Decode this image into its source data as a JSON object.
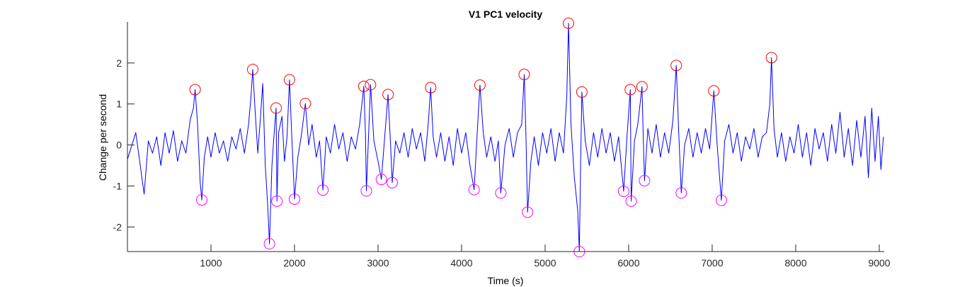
{
  "chart_data": {
    "type": "line",
    "title": "V1 PC1 velocity",
    "xlabel": "Time (s)",
    "ylabel": "Change per second",
    "xlim": [
      0,
      9060
    ],
    "ylim": [
      -2.6,
      3.0
    ],
    "xticks": [
      1000,
      2000,
      3000,
      4000,
      5000,
      6000,
      7000,
      8000,
      9000
    ],
    "yticks": [
      -2,
      -1,
      0,
      1,
      2
    ],
    "grid": false,
    "line_color": "#0000ff",
    "peak_marker_color": "#ff0000",
    "trough_marker_color": "#ff00ff",
    "peaks": [
      {
        "x": 810,
        "y": 1.35
      },
      {
        "x": 1500,
        "y": 1.84
      },
      {
        "x": 1780,
        "y": 0.9
      },
      {
        "x": 1940,
        "y": 1.59
      },
      {
        "x": 2130,
        "y": 1.01
      },
      {
        "x": 2830,
        "y": 1.43
      },
      {
        "x": 2910,
        "y": 1.47
      },
      {
        "x": 3120,
        "y": 1.23
      },
      {
        "x": 3630,
        "y": 1.4
      },
      {
        "x": 4220,
        "y": 1.46
      },
      {
        "x": 4750,
        "y": 1.72
      },
      {
        "x": 5280,
        "y": 2.97
      },
      {
        "x": 5440,
        "y": 1.29
      },
      {
        "x": 6020,
        "y": 1.35
      },
      {
        "x": 6160,
        "y": 1.42
      },
      {
        "x": 6570,
        "y": 1.94
      },
      {
        "x": 7020,
        "y": 1.32
      },
      {
        "x": 7710,
        "y": 2.13
      }
    ],
    "troughs": [
      {
        "x": 890,
        "y": -1.34
      },
      {
        "x": 1700,
        "y": -2.41
      },
      {
        "x": 1790,
        "y": -1.37
      },
      {
        "x": 2000,
        "y": -1.32
      },
      {
        "x": 2340,
        "y": -1.1
      },
      {
        "x": 2860,
        "y": -1.12
      },
      {
        "x": 3040,
        "y": -0.84
      },
      {
        "x": 3170,
        "y": -0.92
      },
      {
        "x": 4150,
        "y": -1.09
      },
      {
        "x": 4470,
        "y": -1.17
      },
      {
        "x": 4790,
        "y": -1.64
      },
      {
        "x": 5410,
        "y": -2.6
      },
      {
        "x": 5940,
        "y": -1.13
      },
      {
        "x": 6030,
        "y": -1.37
      },
      {
        "x": 6190,
        "y": -0.87
      },
      {
        "x": 6630,
        "y": -1.17
      },
      {
        "x": 7110,
        "y": -1.35
      }
    ],
    "series": [
      {
        "points": [
          [
            0,
            -0.35
          ],
          [
            100,
            0.3
          ],
          [
            150,
            -0.45
          ],
          [
            200,
            -1.2
          ],
          [
            250,
            0.1
          ],
          [
            300,
            -0.2
          ],
          [
            350,
            0.2
          ],
          [
            400,
            -0.5
          ],
          [
            450,
            0.3
          ],
          [
            500,
            -0.2
          ],
          [
            550,
            0.35
          ],
          [
            600,
            -0.4
          ],
          [
            650,
            0.1
          ],
          [
            700,
            -0.2
          ],
          [
            750,
            0.6
          ],
          [
            790,
            0.9
          ],
          [
            810,
            1.35
          ],
          [
            840,
            0.5
          ],
          [
            870,
            -0.9
          ],
          [
            890,
            -1.34
          ],
          [
            920,
            -0.3
          ],
          [
            960,
            0.2
          ],
          [
            1000,
            -0.3
          ],
          [
            1050,
            0.3
          ],
          [
            1100,
            -0.2
          ],
          [
            1150,
            0.1
          ],
          [
            1200,
            -0.4
          ],
          [
            1250,
            0.2
          ],
          [
            1300,
            -0.1
          ],
          [
            1350,
            0.4
          ],
          [
            1400,
            -0.2
          ],
          [
            1450,
            0.5
          ],
          [
            1480,
            1.2
          ],
          [
            1500,
            1.84
          ],
          [
            1530,
            0.8
          ],
          [
            1560,
            -0.2
          ],
          [
            1590,
            0.6
          ],
          [
            1620,
            1.5
          ],
          [
            1650,
            -0.5
          ],
          [
            1680,
            -1.5
          ],
          [
            1700,
            -2.41
          ],
          [
            1730,
            -0.5
          ],
          [
            1760,
            0.4
          ],
          [
            1780,
            0.9
          ],
          [
            1790,
            -1.37
          ],
          [
            1810,
            0.3
          ],
          [
            1850,
            0.7
          ],
          [
            1880,
            -0.4
          ],
          [
            1910,
            0.2
          ],
          [
            1940,
            1.59
          ],
          [
            1970,
            0.1
          ],
          [
            2000,
            -1.32
          ],
          [
            2040,
            -0.3
          ],
          [
            2080,
            0.2
          ],
          [
            2130,
            1.01
          ],
          [
            2170,
            0.0
          ],
          [
            2210,
            0.5
          ],
          [
            2260,
            -0.3
          ],
          [
            2300,
            0.1
          ],
          [
            2340,
            -1.1
          ],
          [
            2380,
            0.2
          ],
          [
            2430,
            -0.2
          ],
          [
            2480,
            0.5
          ],
          [
            2530,
            -0.1
          ],
          [
            2580,
            0.3
          ],
          [
            2630,
            -0.4
          ],
          [
            2680,
            0.2
          ],
          [
            2730,
            -0.1
          ],
          [
            2780,
            0.5
          ],
          [
            2830,
            1.43
          ],
          [
            2850,
            0.2
          ],
          [
            2860,
            -1.12
          ],
          [
            2890,
            0.4
          ],
          [
            2910,
            1.47
          ],
          [
            2950,
            0.1
          ],
          [
            3000,
            -0.4
          ],
          [
            3040,
            -0.84
          ],
          [
            3080,
            0.2
          ],
          [
            3120,
            1.23
          ],
          [
            3150,
            0.0
          ],
          [
            3170,
            -0.92
          ],
          [
            3210,
            0.1
          ],
          [
            3260,
            -0.2
          ],
          [
            3310,
            0.3
          ],
          [
            3360,
            -0.3
          ],
          [
            3410,
            0.4
          ],
          [
            3460,
            -0.1
          ],
          [
            3510,
            0.3
          ],
          [
            3560,
            -0.4
          ],
          [
            3600,
            0.5
          ],
          [
            3630,
            1.4
          ],
          [
            3660,
            0.2
          ],
          [
            3700,
            -0.3
          ],
          [
            3750,
            0.3
          ],
          [
            3800,
            -0.4
          ],
          [
            3850,
            0.2
          ],
          [
            3900,
            -0.5
          ],
          [
            3950,
            0.4
          ],
          [
            4000,
            -0.2
          ],
          [
            4050,
            0.3
          ],
          [
            4100,
            -0.5
          ],
          [
            4150,
            -1.09
          ],
          [
            4190,
            0.4
          ],
          [
            4220,
            1.46
          ],
          [
            4260,
            0.3
          ],
          [
            4300,
            -0.3
          ],
          [
            4350,
            0.2
          ],
          [
            4400,
            -0.4
          ],
          [
            4440,
            0.1
          ],
          [
            4470,
            -1.17
          ],
          [
            4520,
            0.0
          ],
          [
            4570,
            0.4
          ],
          [
            4620,
            -0.3
          ],
          [
            4670,
            0.3
          ],
          [
            4720,
            0.5
          ],
          [
            4750,
            1.72
          ],
          [
            4770,
            0.3
          ],
          [
            4790,
            -1.64
          ],
          [
            4830,
            -0.4
          ],
          [
            4870,
            0.2
          ],
          [
            4920,
            -0.5
          ],
          [
            4970,
            0.3
          ],
          [
            5020,
            -0.2
          ],
          [
            5070,
            0.4
          ],
          [
            5120,
            -0.4
          ],
          [
            5170,
            0.3
          ],
          [
            5220,
            -0.2
          ],
          [
            5260,
            1.2
          ],
          [
            5280,
            2.97
          ],
          [
            5310,
            0.5
          ],
          [
            5350,
            -0.8
          ],
          [
            5390,
            -1.6
          ],
          [
            5410,
            -2.6
          ],
          [
            5425,
            -0.5
          ],
          [
            5440,
            1.29
          ],
          [
            5480,
            0.1
          ],
          [
            5530,
            -0.5
          ],
          [
            5580,
            0.3
          ],
          [
            5630,
            -0.3
          ],
          [
            5680,
            0.4
          ],
          [
            5730,
            -0.2
          ],
          [
            5780,
            0.3
          ],
          [
            5830,
            -0.4
          ],
          [
            5880,
            0.2
          ],
          [
            5940,
            -1.13
          ],
          [
            5980,
            0.2
          ],
          [
            6020,
            1.35
          ],
          [
            6030,
            -1.37
          ],
          [
            6070,
            0.1
          ],
          [
            6110,
            0.5
          ],
          [
            6160,
            1.42
          ],
          [
            6175,
            0.2
          ],
          [
            6190,
            -0.87
          ],
          [
            6230,
            0.4
          ],
          [
            6280,
            -0.2
          ],
          [
            6330,
            0.5
          ],
          [
            6380,
            -0.3
          ],
          [
            6430,
            0.3
          ],
          [
            6480,
            -0.2
          ],
          [
            6530,
            0.6
          ],
          [
            6570,
            1.94
          ],
          [
            6600,
            0.3
          ],
          [
            6630,
            -1.17
          ],
          [
            6670,
            0.0
          ],
          [
            6720,
            0.4
          ],
          [
            6770,
            -0.3
          ],
          [
            6820,
            0.3
          ],
          [
            6870,
            -0.2
          ],
          [
            6920,
            0.4
          ],
          [
            6970,
            -0.1
          ],
          [
            7020,
            1.32
          ],
          [
            7060,
            0.0
          ],
          [
            7110,
            -1.35
          ],
          [
            7150,
            0.1
          ],
          [
            7200,
            0.5
          ],
          [
            7250,
            -0.2
          ],
          [
            7300,
            0.3
          ],
          [
            7350,
            -0.4
          ],
          [
            7400,
            0.2
          ],
          [
            7450,
            -0.1
          ],
          [
            7500,
            0.4
          ],
          [
            7550,
            -0.3
          ],
          [
            7600,
            0.2
          ],
          [
            7650,
            0.3
          ],
          [
            7690,
            1.0
          ],
          [
            7710,
            2.13
          ],
          [
            7740,
            0.4
          ],
          [
            7780,
            -0.3
          ],
          [
            7830,
            0.3
          ],
          [
            7880,
            -0.4
          ],
          [
            7930,
            0.2
          ],
          [
            7980,
            -0.2
          ],
          [
            8030,
            0.5
          ],
          [
            8080,
            -0.3
          ],
          [
            8130,
            0.3
          ],
          [
            8180,
            -0.5
          ],
          [
            8230,
            0.4
          ],
          [
            8280,
            -0.1
          ],
          [
            8330,
            0.3
          ],
          [
            8380,
            -0.4
          ],
          [
            8430,
            0.5
          ],
          [
            8480,
            -0.2
          ],
          [
            8530,
            0.8
          ],
          [
            8580,
            -0.3
          ],
          [
            8630,
            0.4
          ],
          [
            8680,
            -0.5
          ],
          [
            8730,
            0.6
          ],
          [
            8780,
            -0.3
          ],
          [
            8830,
            0.7
          ],
          [
            8870,
            -0.8
          ],
          [
            8910,
            0.9
          ],
          [
            8950,
            -0.4
          ],
          [
            8990,
            0.7
          ],
          [
            9020,
            -0.6
          ],
          [
            9050,
            0.2
          ]
        ]
      }
    ]
  }
}
